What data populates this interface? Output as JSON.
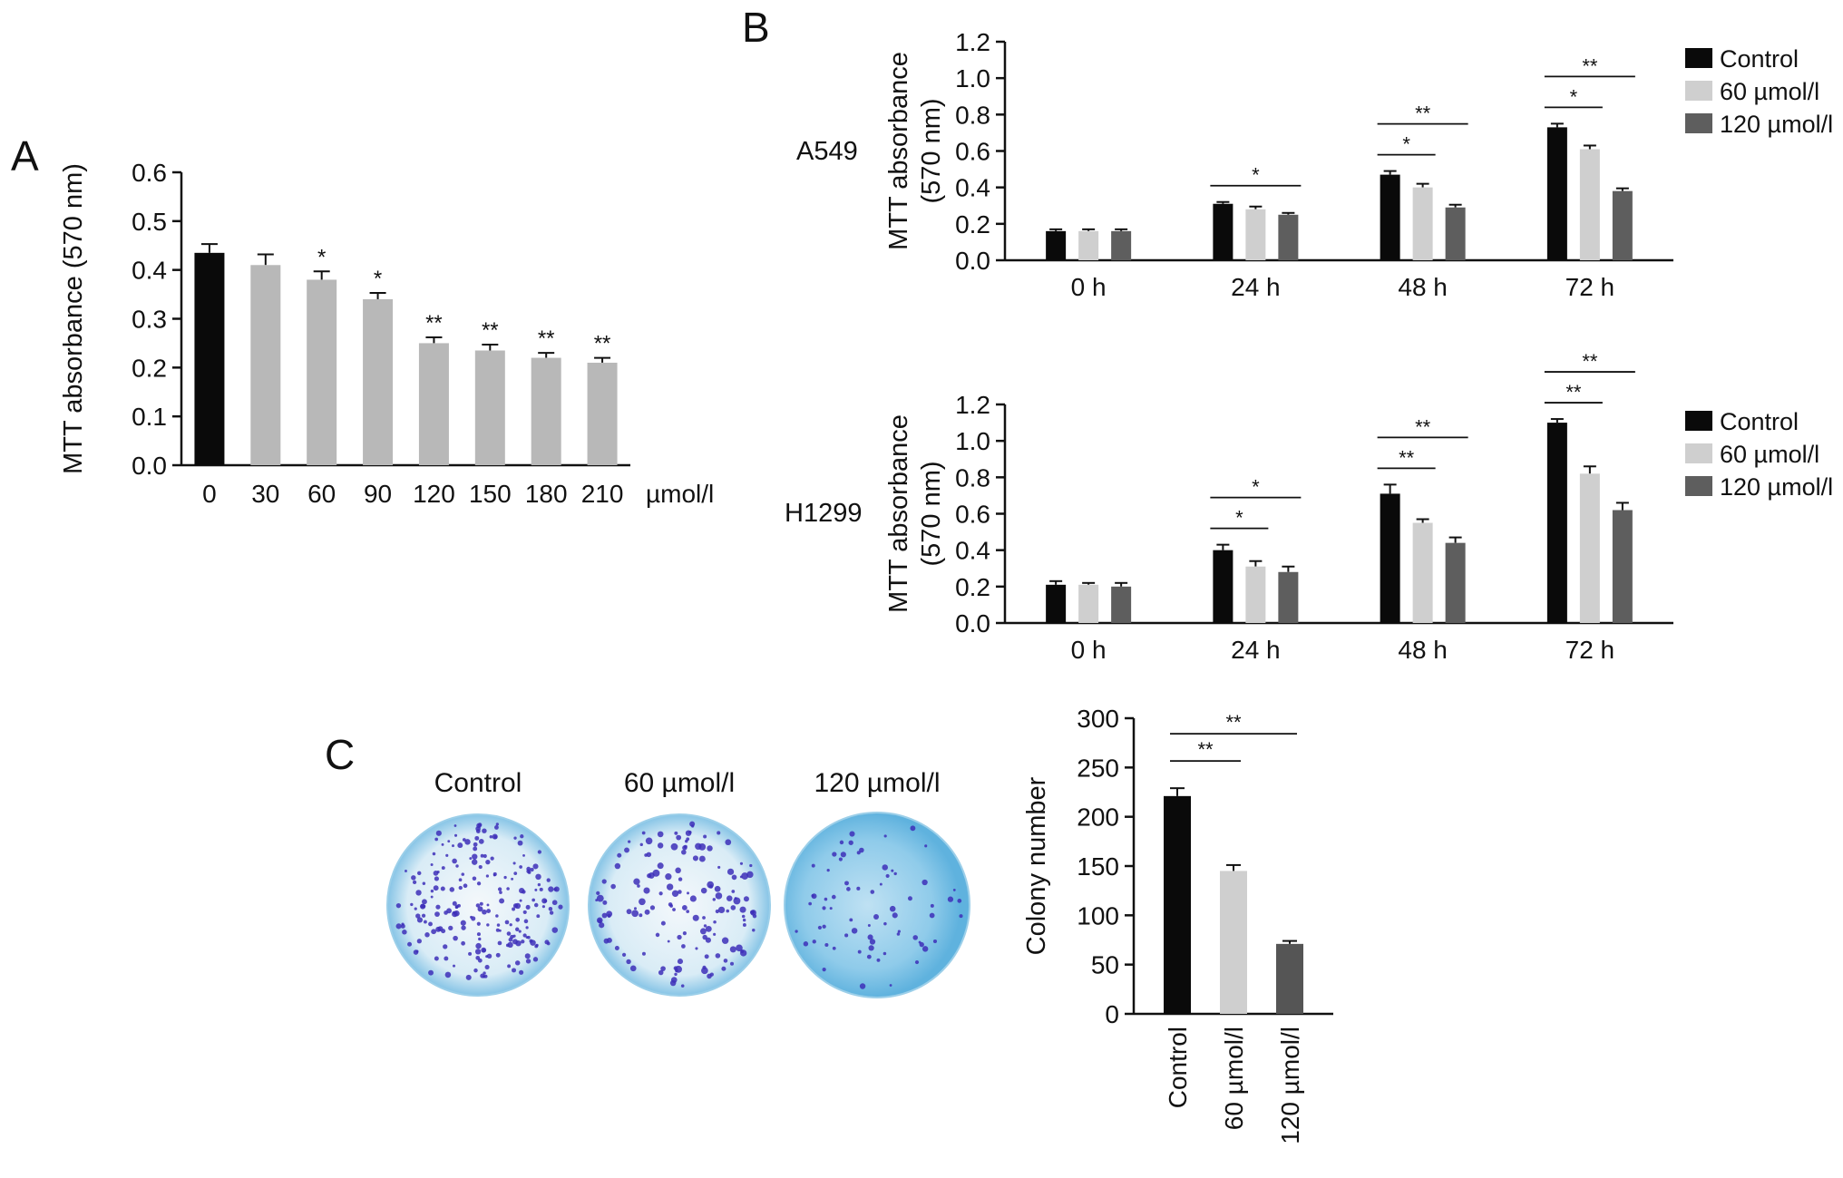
{
  "panels": {
    "a": "A",
    "b": "B",
    "c": "C"
  },
  "colors": {
    "control": "#0a0a0a",
    "dose60": "#cfcfcf",
    "dose120": "#5e5e5e",
    "doseA": "#b8b8b8",
    "colony120": "#555555",
    "plate_blue": "#6ab8de",
    "colony_dot": "#3d2fb8"
  },
  "dishes": {
    "labels": [
      "Control",
      "60 µmol/l",
      "120 µmol/l"
    ]
  },
  "chart_data": [
    {
      "id": "A",
      "type": "bar",
      "categories": [
        "0",
        "30",
        "60",
        "90",
        "120",
        "150",
        "180",
        "210"
      ],
      "values": [
        0.435,
        0.41,
        0.38,
        0.34,
        0.25,
        0.235,
        0.22,
        0.21
      ],
      "errors": [
        0.018,
        0.022,
        0.017,
        0.013,
        0.012,
        0.012,
        0.01,
        0.01
      ],
      "sig": [
        "",
        "",
        "*",
        "*",
        "**",
        "**",
        "**",
        "**"
      ],
      "ylabel": "MTT absorbance (570 nm)",
      "xunit": "µmol/l",
      "ylim": [
        0,
        0.6
      ],
      "yticks": [
        "0.0",
        "0.1",
        "0.2",
        "0.3",
        "0.4",
        "0.5",
        "0.6"
      ],
      "grid": false
    },
    {
      "id": "B-A549",
      "type": "bar",
      "row_label": "A549",
      "categories": [
        "0 h",
        "24 h",
        "48 h",
        "72 h"
      ],
      "series": [
        {
          "name": "Control",
          "values": [
            0.16,
            0.31,
            0.47,
            0.73
          ],
          "errors": [
            0.01,
            0.01,
            0.02,
            0.02
          ]
        },
        {
          "name": "60 µmol/l",
          "values": [
            0.16,
            0.28,
            0.4,
            0.61
          ],
          "errors": [
            0.01,
            0.015,
            0.02,
            0.02
          ]
        },
        {
          "name": "120 µmol/l",
          "values": [
            0.16,
            0.25,
            0.29,
            0.38
          ],
          "errors": [
            0.01,
            0.01,
            0.015,
            0.015
          ]
        }
      ],
      "sig_brackets": [
        {
          "group": 1,
          "from": 0,
          "to": 2,
          "label": "*"
        },
        {
          "group": 2,
          "from": 0,
          "to": 1,
          "label": "*"
        },
        {
          "group": 2,
          "from": 0,
          "to": 2,
          "label": "**"
        },
        {
          "group": 3,
          "from": 0,
          "to": 1,
          "label": "*"
        },
        {
          "group": 3,
          "from": 0,
          "to": 2,
          "label": "**"
        }
      ],
      "ylabel": [
        "MTT absorbance",
        "(570 nm)"
      ],
      "ylim": [
        0,
        1.2
      ],
      "yticks": [
        "0.0",
        "0.2",
        "0.4",
        "0.6",
        "0.8",
        "1.0",
        "1.2"
      ],
      "legend_placement": "top-right"
    },
    {
      "id": "B-H1299",
      "type": "bar",
      "row_label": "H1299",
      "categories": [
        "0 h",
        "24 h",
        "48 h",
        "72 h"
      ],
      "series": [
        {
          "name": "Control",
          "values": [
            0.21,
            0.4,
            0.71,
            1.1
          ],
          "errors": [
            0.02,
            0.03,
            0.05,
            0.02
          ]
        },
        {
          "name": "60 µmol/l",
          "values": [
            0.21,
            0.31,
            0.55,
            0.82
          ],
          "errors": [
            0.01,
            0.03,
            0.02,
            0.04
          ]
        },
        {
          "name": "120 µmol/l",
          "values": [
            0.2,
            0.28,
            0.44,
            0.62
          ],
          "errors": [
            0.02,
            0.03,
            0.03,
            0.04
          ]
        }
      ],
      "sig_brackets": [
        {
          "group": 1,
          "from": 0,
          "to": 1,
          "label": "*"
        },
        {
          "group": 1,
          "from": 0,
          "to": 2,
          "label": "*"
        },
        {
          "group": 2,
          "from": 0,
          "to": 1,
          "label": "**"
        },
        {
          "group": 2,
          "from": 0,
          "to": 2,
          "label": "**"
        },
        {
          "group": 3,
          "from": 0,
          "to": 1,
          "label": "**"
        },
        {
          "group": 3,
          "from": 0,
          "to": 2,
          "label": "**"
        }
      ],
      "ylabel": [
        "MTT absorbance",
        "(570 nm)"
      ],
      "ylim": [
        0,
        1.2
      ],
      "yticks": [
        "0.0",
        "0.2",
        "0.4",
        "0.6",
        "0.8",
        "1.0",
        "1.2"
      ],
      "legend_placement": "top-right"
    },
    {
      "id": "C",
      "type": "bar",
      "categories": [
        "Control",
        "60 µmol/l",
        "120 µmol/l"
      ],
      "values": [
        221,
        145,
        71
      ],
      "errors": [
        8,
        6,
        3
      ],
      "sig_brackets": [
        {
          "from": 0,
          "to": 1,
          "label": "**"
        },
        {
          "from": 0,
          "to": 2,
          "label": "**"
        }
      ],
      "ylabel": "Colony number",
      "ylim": [
        0,
        300
      ],
      "yticks": [
        "0",
        "50",
        "100",
        "150",
        "200",
        "250",
        "300"
      ]
    }
  ]
}
